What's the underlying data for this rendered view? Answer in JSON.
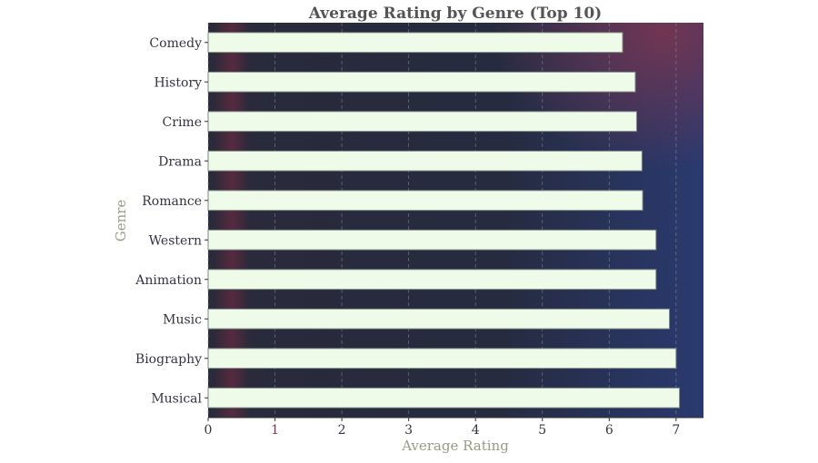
{
  "chart_data": {
    "type": "bar",
    "orientation": "horizontal",
    "title": "Average Rating by Genre (Top 10)",
    "xlabel": "Average Rating",
    "ylabel": "Genre",
    "categories": [
      "Comedy",
      "History",
      "Crime",
      "Drama",
      "Romance",
      "Western",
      "Animation",
      "Music",
      "Biography",
      "Musical"
    ],
    "values": [
      6.2,
      6.39,
      6.41,
      6.49,
      6.5,
      6.7,
      6.7,
      6.9,
      7.0,
      7.05
    ],
    "xlim": [
      0,
      7.41
    ],
    "xticks": [
      "0",
      "1",
      "2",
      "3",
      "4",
      "5",
      "6",
      "7"
    ],
    "grid": "x-dashed",
    "colors": {
      "bar": "#eefbe9",
      "bar_edge": "#7f8a86",
      "background": "#262b3e",
      "title": "#555555",
      "label": "#9a9a86",
      "tick": "#333344"
    }
  }
}
